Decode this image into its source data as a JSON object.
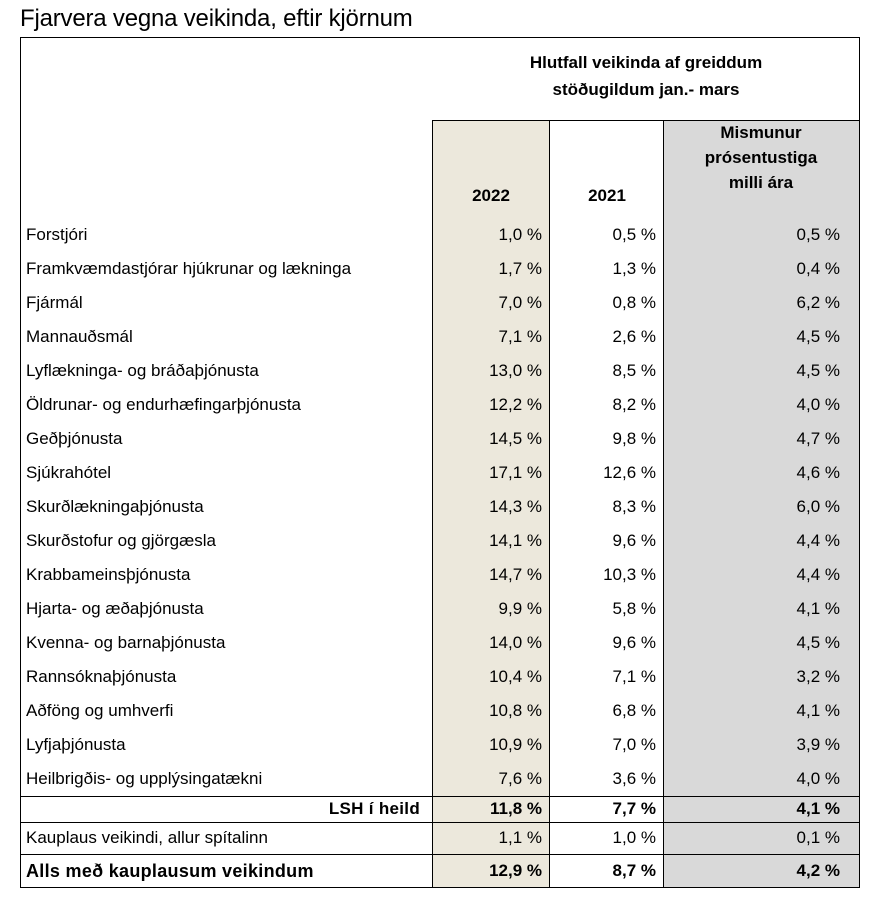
{
  "title": "Fjarvera vegna veikinda, eftir kjörnum",
  "header": {
    "group_line1": "Hlutfall veikinda af greiddum",
    "group_line2": "stöðugildum jan.- mars",
    "col_2022": "2022",
    "col_2021": "2021",
    "col_diff_line1": "Mismunur",
    "col_diff_line2": "prósentustiga",
    "col_diff_line3": "milli ára"
  },
  "rows": [
    {
      "label": "Forstjóri",
      "v2022": "1,0 %",
      "v2021": "0,5 %",
      "diff": "0,5 %"
    },
    {
      "label": "Framkvæmdastjórar hjúkrunar og lækninga",
      "v2022": "1,7 %",
      "v2021": "1,3 %",
      "diff": "0,4 %"
    },
    {
      "label": "Fjármál",
      "v2022": "7,0 %",
      "v2021": "0,8 %",
      "diff": "6,2 %"
    },
    {
      "label": "Mannauðsmál",
      "v2022": "7,1 %",
      "v2021": "2,6 %",
      "diff": "4,5 %"
    },
    {
      "label": "Lyflækninga- og bráðaþjónusta",
      "v2022": "13,0 %",
      "v2021": "8,5 %",
      "diff": "4,5 %"
    },
    {
      "label": "Öldrunar- og endurhæfingarþjónusta",
      "v2022": "12,2 %",
      "v2021": "8,2 %",
      "diff": "4,0 %"
    },
    {
      "label": "Geðþjónusta",
      "v2022": "14,5 %",
      "v2021": "9,8 %",
      "diff": "4,7 %"
    },
    {
      "label": "Sjúkrahótel",
      "v2022": "17,1 %",
      "v2021": "12,6 %",
      "diff": "4,6 %"
    },
    {
      "label": "Skurðlækningaþjónusta",
      "v2022": "14,3 %",
      "v2021": "8,3 %",
      "diff": "6,0 %"
    },
    {
      "label": "Skurðstofur og gjörgæsla",
      "v2022": "14,1 %",
      "v2021": "9,6 %",
      "diff": "4,4 %"
    },
    {
      "label": "Krabbameinsþjónusta",
      "v2022": "14,7 %",
      "v2021": "10,3 %",
      "diff": "4,4 %"
    },
    {
      "label": "Hjarta- og æðaþjónusta",
      "v2022": "9,9 %",
      "v2021": "5,8 %",
      "diff": "4,1 %"
    },
    {
      "label": "Kvenna- og barnaþjónusta",
      "v2022": "14,0 %",
      "v2021": "9,6 %",
      "diff": "4,5 %"
    },
    {
      "label": "Rannsóknaþjónusta",
      "v2022": "10,4 %",
      "v2021": "7,1 %",
      "diff": "3,2 %"
    },
    {
      "label": "Aðföng og umhverfi",
      "v2022": "10,8 %",
      "v2021": "6,8 %",
      "diff": "4,1 %"
    },
    {
      "label": "Lyfjaþjónusta",
      "v2022": "10,9 %",
      "v2021": "7,0 %",
      "diff": "3,9 %"
    },
    {
      "label": "Heilbrigðis- og upplýsingatækni",
      "v2022": "7,6 %",
      "v2021": "3,6 %",
      "diff": "4,0 %"
    }
  ],
  "total": {
    "label": "LSH í heild",
    "v2022": "11,8 %",
    "v2021": "7,7 %",
    "diff": "4,1 %"
  },
  "unpaid": {
    "label": "Kauplaus veikindi, allur spítalinn",
    "v2022": "1,1 %",
    "v2021": "1,0 %",
    "diff": "0,1 %"
  },
  "grand": {
    "label": "Alls með kauplausum veikindum",
    "v2022": "12,9 %",
    "v2021": "8,7 %",
    "diff": "4,2 %"
  },
  "colors": {
    "tint_2022": "#ece8dc",
    "grey_diff": "#d9d9d9",
    "border": "#000000"
  }
}
